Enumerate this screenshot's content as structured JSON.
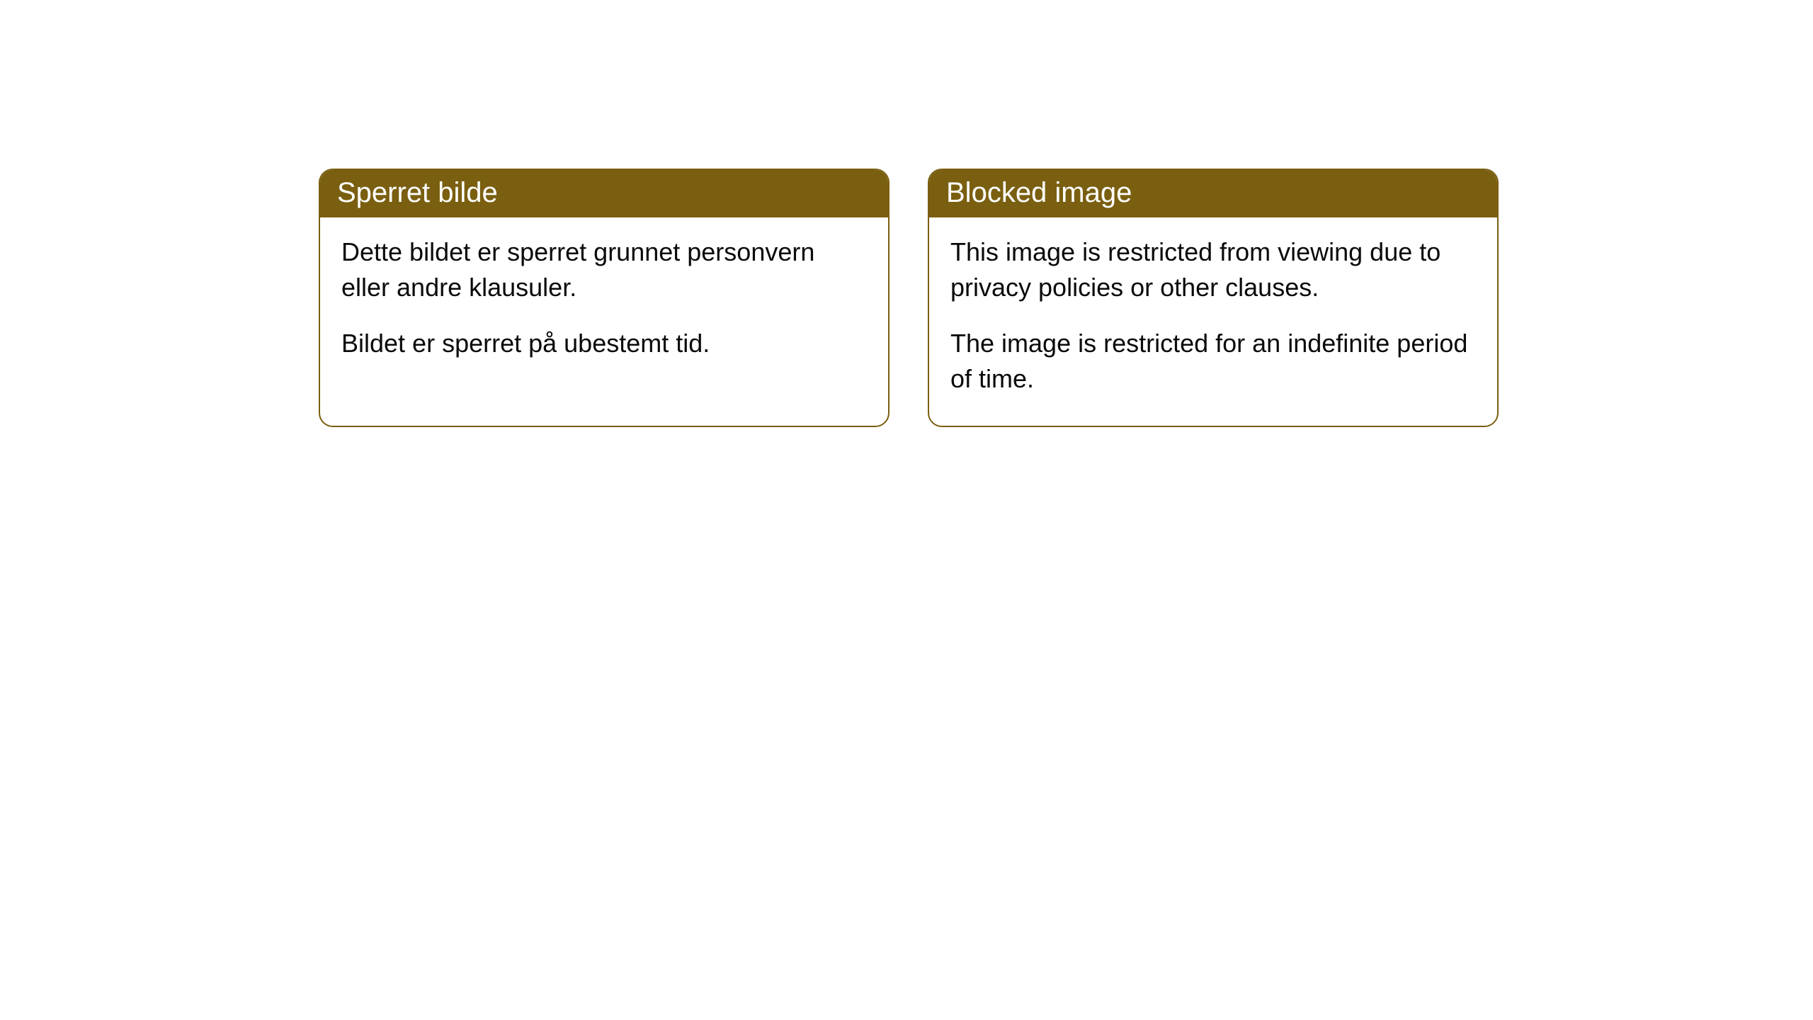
{
  "cards": [
    {
      "title": "Sperret bilde",
      "paragraph1": "Dette bildet er sperret grunnet personvern eller andre klausuler.",
      "paragraph2": "Bildet er sperret på ubestemt tid."
    },
    {
      "title": "Blocked image",
      "paragraph1": "This image is restricted from viewing due to privacy policies or other clauses.",
      "paragraph2": "The image is restricted for an indefinite period of time."
    }
  ],
  "styles": {
    "header_background": "#7a5f10",
    "header_text_color": "#ffffff",
    "border_color": "#7a5f10",
    "body_text_color": "#0a0a0a",
    "page_background": "#ffffff",
    "border_radius": 20,
    "title_fontsize": 40,
    "body_fontsize": 36
  }
}
